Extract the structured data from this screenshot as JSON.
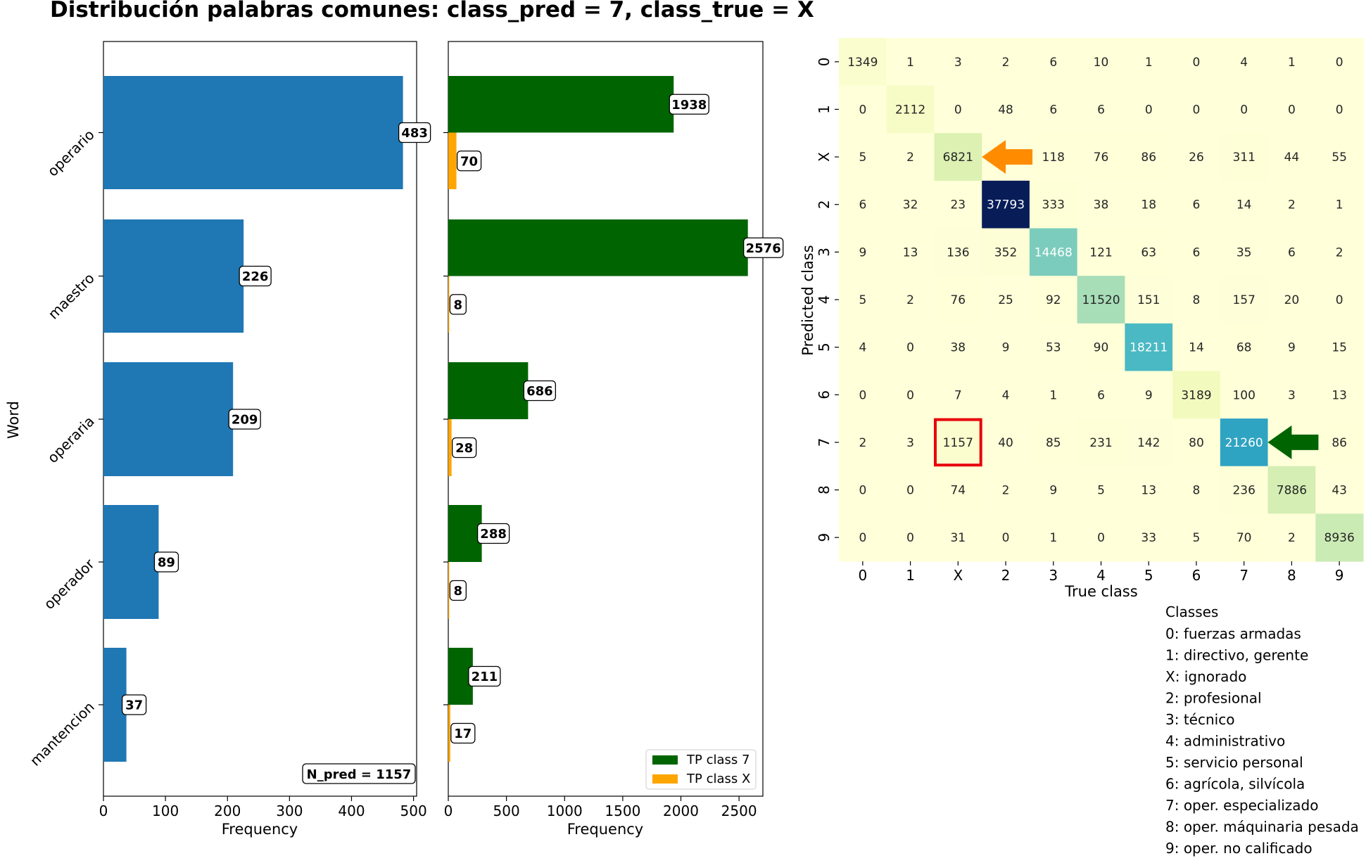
{
  "title": "Distribución palabras comunes:  class_pred = 7, class_true = X",
  "chart_data": [
    {
      "type": "bar",
      "orientation": "horizontal",
      "categories": [
        "operario",
        "maestro",
        "operaria",
        "operador",
        "mantencion"
      ],
      "values": [
        483,
        226,
        209,
        89,
        37
      ],
      "xlabel": "Frequency",
      "ylabel": "Word",
      "xlim": [
        0,
        505
      ],
      "xticks": [
        0,
        100,
        200,
        300,
        400,
        500
      ],
      "color": "#1f77b4",
      "annotation": "N_pred = 1157"
    },
    {
      "type": "bar",
      "orientation": "horizontal",
      "categories": [
        "operario",
        "maestro",
        "operaria",
        "operador",
        "mantencion"
      ],
      "series": [
        {
          "name": "TP class 7",
          "values": [
            1938,
            2576,
            686,
            288,
            211
          ],
          "color": "#006400"
        },
        {
          "name": "TP class X",
          "values": [
            70,
            8,
            28,
            8,
            17
          ],
          "color": "#ffa500"
        }
      ],
      "xlabel": "Frequency",
      "xlim": [
        0,
        2705
      ],
      "xticks": [
        0,
        500,
        1000,
        1500,
        2000,
        2500
      ],
      "legend": "bottom-right"
    },
    {
      "type": "heatmap",
      "row_labels": [
        "0",
        "1",
        "X",
        "2",
        "3",
        "4",
        "5",
        "6",
        "7",
        "8",
        "9"
      ],
      "col_labels": [
        "0",
        "1",
        "X",
        "2",
        "3",
        "4",
        "5",
        "6",
        "7",
        "8",
        "9"
      ],
      "xlabel": "True class",
      "ylabel": "Predicted class",
      "colormap": "YlGnBu",
      "vmin": 0,
      "vmax": 37793,
      "values": [
        [
          1349,
          1,
          3,
          2,
          6,
          10,
          1,
          0,
          4,
          1,
          0
        ],
        [
          0,
          2112,
          0,
          48,
          6,
          6,
          0,
          0,
          0,
          0,
          0
        ],
        [
          5,
          2,
          6821,
          0,
          118,
          76,
          86,
          26,
          311,
          44,
          55
        ],
        [
          6,
          32,
          23,
          37793,
          333,
          38,
          18,
          6,
          14,
          2,
          1
        ],
        [
          9,
          13,
          136,
          352,
          14468,
          121,
          63,
          6,
          35,
          6,
          2
        ],
        [
          5,
          2,
          76,
          25,
          92,
          11520,
          151,
          8,
          157,
          20,
          0
        ],
        [
          4,
          0,
          38,
          9,
          53,
          90,
          18211,
          14,
          68,
          9,
          15
        ],
        [
          0,
          0,
          7,
          4,
          1,
          6,
          9,
          3189,
          100,
          3,
          13
        ],
        [
          2,
          3,
          1157,
          40,
          85,
          231,
          142,
          80,
          21260,
          0,
          86
        ],
        [
          0,
          0,
          74,
          2,
          9,
          5,
          13,
          8,
          236,
          7886,
          43
        ],
        [
          0,
          0,
          31,
          0,
          1,
          0,
          33,
          5,
          70,
          2,
          8936
        ]
      ],
      "hidden_cells": [
        [
          2,
          3
        ],
        [
          8,
          9
        ]
      ],
      "highlight_cell": {
        "row": 8,
        "col": 2,
        "color": "#e8000b"
      },
      "arrows": [
        {
          "row": 2,
          "col": 3,
          "direction": "left",
          "color": "#ff8c00"
        },
        {
          "row": 8,
          "col": 9,
          "direction": "left",
          "color": "#006400"
        }
      ]
    }
  ],
  "classes_legend": {
    "title": "Classes",
    "items": [
      "0: fuerzas armadas",
      "1: directivo, gerente",
      "X: ignorado",
      "2: profesional",
      "3: técnico",
      "4: administrativo",
      "5: servicio personal",
      "6: agrícola, silvícola",
      "7: oper. especializado",
      "8: oper. máquinaria pesada",
      "9: oper. no calificado"
    ]
  }
}
